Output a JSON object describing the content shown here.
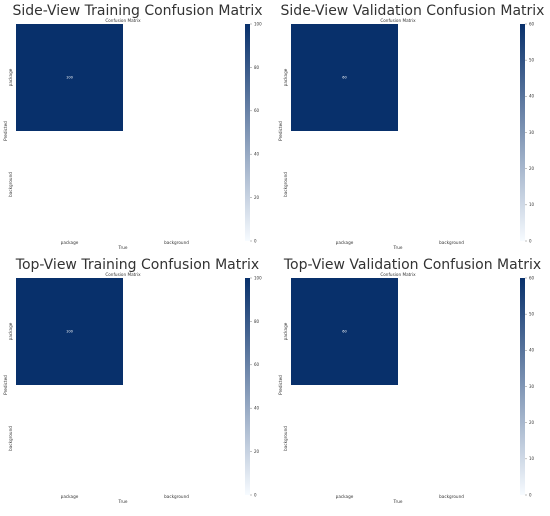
{
  "colors": {
    "cell_high": "#08306b",
    "cell_low": "#f7fbff"
  },
  "chart_data": [
    {
      "type": "heatmap",
      "title": "Side-View Training Confusion Matrix",
      "subtitle": "Confusion Matrix",
      "xlabel": "True",
      "ylabel": "Predicted",
      "x_categories": [
        "package",
        "background"
      ],
      "y_categories": [
        "package",
        "background"
      ],
      "cells": [
        [
          {
            "value": 100,
            "label": "100"
          },
          {
            "value": null,
            "label": ""
          }
        ],
        [
          {
            "value": null,
            "label": ""
          },
          {
            "value": null,
            "label": ""
          }
        ]
      ],
      "colorbar": {
        "min": 0,
        "max": 100,
        "ticks": [
          "0",
          "20",
          "40",
          "60",
          "80",
          "100"
        ]
      }
    },
    {
      "type": "heatmap",
      "title": "Side-View Validation Confusion Matrix",
      "subtitle": "Confusion Matrix",
      "xlabel": "True",
      "ylabel": "Predicted",
      "x_categories": [
        "package",
        "background"
      ],
      "y_categories": [
        "package",
        "background"
      ],
      "cells": [
        [
          {
            "value": 60,
            "label": "60"
          },
          {
            "value": null,
            "label": ""
          }
        ],
        [
          {
            "value": null,
            "label": ""
          },
          {
            "value": null,
            "label": ""
          }
        ]
      ],
      "colorbar": {
        "min": 0,
        "max": 60,
        "ticks": [
          "0",
          "10",
          "20",
          "30",
          "40",
          "50",
          "60"
        ]
      }
    },
    {
      "type": "heatmap",
      "title": "Top-View Training Confusion Matrix",
      "subtitle": "Confusion Matrix",
      "xlabel": "True",
      "ylabel": "Predicted",
      "x_categories": [
        "package",
        "background"
      ],
      "y_categories": [
        "package",
        "background"
      ],
      "cells": [
        [
          {
            "value": 100,
            "label": "100"
          },
          {
            "value": null,
            "label": ""
          }
        ],
        [
          {
            "value": null,
            "label": ""
          },
          {
            "value": null,
            "label": ""
          }
        ]
      ],
      "colorbar": {
        "min": 0,
        "max": 100,
        "ticks": [
          "0",
          "20",
          "40",
          "60",
          "80",
          "100"
        ]
      }
    },
    {
      "type": "heatmap",
      "title": "Top-View Validation Confusion Matrix",
      "subtitle": "Confusion Matrix",
      "xlabel": "True",
      "ylabel": "Predicted",
      "x_categories": [
        "package",
        "background"
      ],
      "y_categories": [
        "package",
        "background"
      ],
      "cells": [
        [
          {
            "value": 60,
            "label": "60"
          },
          {
            "value": null,
            "label": ""
          }
        ],
        [
          {
            "value": null,
            "label": ""
          },
          {
            "value": null,
            "label": ""
          }
        ]
      ],
      "colorbar": {
        "min": 0,
        "max": 60,
        "ticks": [
          "0",
          "10",
          "20",
          "30",
          "40",
          "50",
          "60"
        ]
      }
    }
  ]
}
